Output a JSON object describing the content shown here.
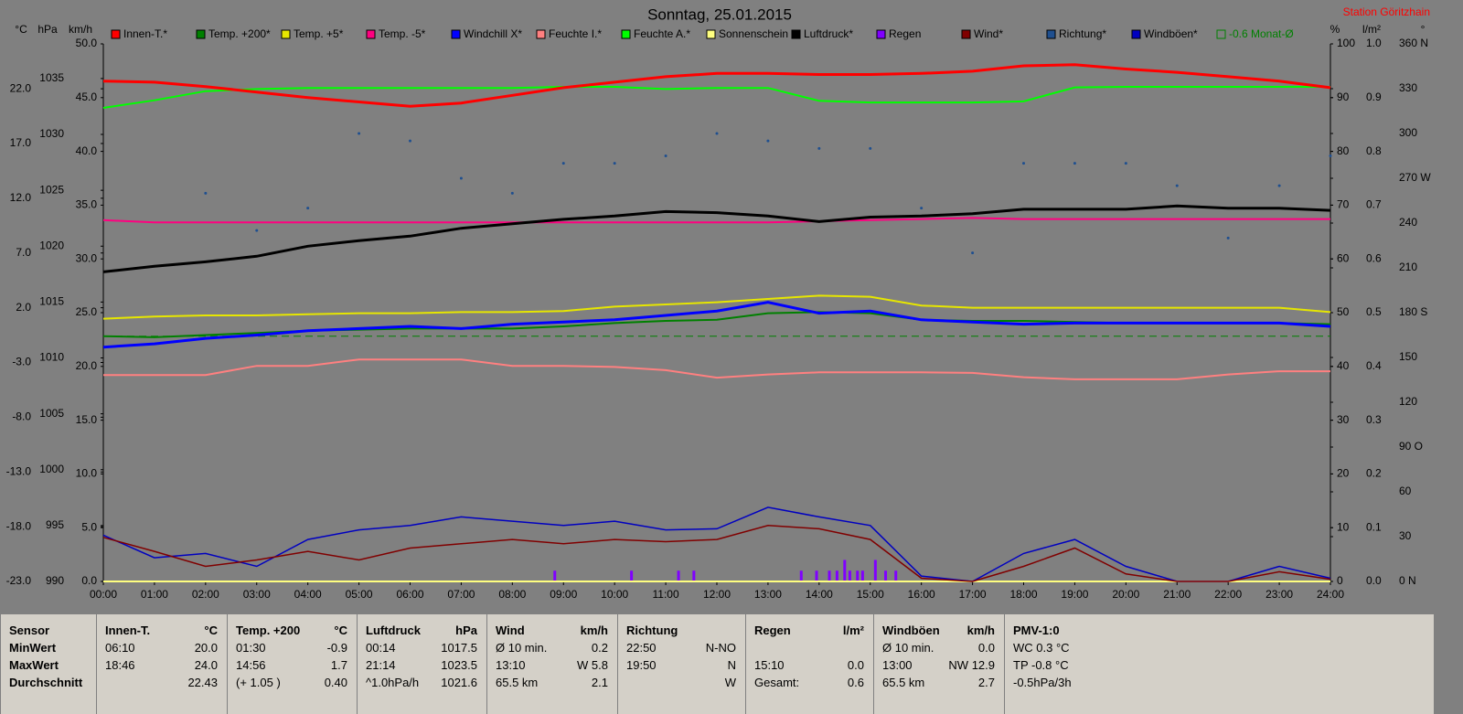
{
  "chart_data": {
    "type": "line",
    "title": "Sonntag, 25.01.2015",
    "station": "Station Göritzhain",
    "x": [
      0,
      1,
      2,
      3,
      4,
      5,
      6,
      7,
      8,
      9,
      10,
      11,
      12,
      13,
      14,
      15,
      16,
      17,
      18,
      19,
      20,
      21,
      22,
      23,
      24
    ],
    "xlim": [
      0,
      24
    ],
    "xticks": [
      {
        "value": 0,
        "label": "00:00"
      },
      {
        "value": 1,
        "label": "01:00"
      },
      {
        "value": 2,
        "label": "02:00"
      },
      {
        "value": 3,
        "label": "03:00"
      },
      {
        "value": 4,
        "label": "04:00"
      },
      {
        "value": 5,
        "label": "05:00"
      },
      {
        "value": 6,
        "label": "06:00"
      },
      {
        "value": 7,
        "label": "07:00"
      },
      {
        "value": 8,
        "label": "08:00"
      },
      {
        "value": 9,
        "label": "09:00"
      },
      {
        "value": 10,
        "label": "10:00"
      },
      {
        "value": 11,
        "label": "11:00"
      },
      {
        "value": 12,
        "label": "12:00"
      },
      {
        "value": 13,
        "label": "13:00"
      },
      {
        "value": 14,
        "label": "14:00"
      },
      {
        "value": 15,
        "label": "15:00"
      },
      {
        "value": 16,
        "label": "16:00"
      },
      {
        "value": 17,
        "label": "17:00"
      },
      {
        "value": 18,
        "label": "18:00"
      },
      {
        "value": 19,
        "label": "19:00"
      },
      {
        "value": 20,
        "label": "20:00"
      },
      {
        "value": 21,
        "label": "21:00"
      },
      {
        "value": 22,
        "label": "22:00"
      },
      {
        "value": 23,
        "label": "23:00"
      },
      {
        "value": 24,
        "label": "24:00"
      }
    ],
    "axes": [
      {
        "unit": "°C",
        "lim": [
          -23,
          26.1
        ],
        "ticks": [
          {
            "value": -23,
            "label": "-23.0"
          },
          {
            "value": -18,
            "label": "-18.0"
          },
          {
            "value": -13,
            "label": "-13.0"
          },
          {
            "value": -8,
            "label": "-8.0"
          },
          {
            "value": -3,
            "label": "-3.0"
          },
          {
            "value": 2,
            "label": "2.0"
          },
          {
            "value": 7,
            "label": "7.0"
          },
          {
            "value": 12,
            "label": "12.0"
          },
          {
            "value": 17,
            "label": "17.0"
          },
          {
            "value": 22,
            "label": "22.0"
          }
        ]
      },
      {
        "unit": "hPa",
        "lim": [
          990,
          1038.1
        ],
        "ticks": [
          990,
          995,
          1000,
          1005,
          1010,
          1015,
          1020,
          1025,
          1030,
          1035
        ]
      },
      {
        "unit": "km/h",
        "lim": [
          0,
          50
        ],
        "ticks": [
          {
            "value": 0,
            "label": "0.0"
          },
          {
            "value": 5,
            "label": "5.0"
          },
          {
            "value": 10,
            "label": "10.0"
          },
          {
            "value": 15,
            "label": "15.0"
          },
          {
            "value": 20,
            "label": "20.0"
          },
          {
            "value": 25,
            "label": "25.0"
          },
          {
            "value": 30,
            "label": "30.0"
          },
          {
            "value": 35,
            "label": "35.0"
          },
          {
            "value": 40,
            "label": "40.0"
          },
          {
            "value": 45,
            "label": "45.0"
          },
          {
            "value": 50,
            "label": "50.0"
          }
        ]
      },
      {
        "unit": "%",
        "lim": [
          0,
          100
        ],
        "ticks": [
          0,
          10,
          20,
          30,
          40,
          50,
          60,
          70,
          80,
          90,
          100
        ]
      },
      {
        "unit": "l/m²",
        "lim": [
          0,
          1
        ],
        "ticks": [
          {
            "value": 0,
            "label": "0.0"
          },
          0.1,
          0.2,
          0.3,
          0.4,
          0.5,
          0.6,
          0.7,
          0.8,
          0.9,
          {
            "value": 1,
            "label": "1.0"
          }
        ]
      },
      {
        "unit": "°",
        "lim": [
          0,
          360
        ],
        "ticks": [
          {
            "value": 0,
            "label": "0 N"
          },
          30,
          60,
          {
            "value": 90,
            "label": "90 O"
          },
          120,
          150,
          {
            "value": 180,
            "label": "180 S"
          },
          210,
          240,
          {
            "value": 270,
            "label": "270 W"
          },
          300,
          330,
          {
            "value": 360,
            "label": "360 N"
          }
        ]
      }
    ],
    "series": [
      {
        "name": "Innen-T.*",
        "color": "#ff0000",
        "axis": 0,
        "mark": "line",
        "values": [
          22.7,
          22.6,
          22.2,
          21.7,
          21.2,
          20.8,
          20.4,
          20.7,
          21.4,
          22.1,
          22.6,
          23.1,
          23.4,
          23.4,
          23.3,
          23.3,
          23.4,
          23.6,
          24.1,
          24.2,
          23.8,
          23.5,
          23.1,
          22.7,
          22.1
        ]
      },
      {
        "name": "Temp. +200*",
        "color": "#008000",
        "axis": 0,
        "mark": "line",
        "values": [
          -0.6,
          -0.7,
          -0.5,
          -0.3,
          -0.1,
          0.0,
          0.1,
          0.1,
          0.1,
          0.3,
          0.6,
          0.8,
          0.9,
          1.5,
          1.6,
          1.5,
          0.9,
          0.8,
          0.8,
          0.7,
          0.6,
          0.6,
          0.6,
          0.6,
          0.5
        ]
      },
      {
        "name": "Temp. +5*",
        "color": "#e6e600",
        "axis": 0,
        "mark": "line",
        "values": [
          1.0,
          1.2,
          1.3,
          1.3,
          1.4,
          1.5,
          1.5,
          1.6,
          1.6,
          1.7,
          2.1,
          2.3,
          2.5,
          2.8,
          3.1,
          3.0,
          2.2,
          2.0,
          2.0,
          2.0,
          2.0,
          2.0,
          2.0,
          2.0,
          1.6
        ]
      },
      {
        "name": "Temp. -5*",
        "color": "#ff0080",
        "axis": 0,
        "mark": "line",
        "values": [
          10.0,
          9.8,
          9.8,
          9.8,
          9.8,
          9.8,
          9.8,
          9.8,
          9.8,
          9.8,
          9.8,
          9.8,
          9.8,
          9.8,
          9.9,
          10.0,
          10.1,
          10.2,
          10.1,
          10.1,
          10.1,
          10.1,
          10.1,
          10.1,
          10.1
        ]
      },
      {
        "name": "Windchill X*",
        "color": "#0000ff",
        "axis": 0,
        "mark": "line",
        "values": [
          -1.6,
          -1.3,
          -0.8,
          -0.5,
          -0.1,
          0.1,
          0.3,
          0.1,
          0.5,
          0.7,
          0.9,
          1.3,
          1.7,
          2.5,
          1.5,
          1.7,
          0.9,
          0.7,
          0.5,
          0.6,
          0.6,
          0.6,
          0.6,
          0.6,
          0.3
        ]
      },
      {
        "name": "Feuchte I.*",
        "color": "#ff8080",
        "axis": 3,
        "mark": "line",
        "values": [
          38.4,
          38.4,
          38.4,
          40.1,
          40.1,
          41.3,
          41.3,
          41.3,
          40.1,
          40.1,
          39.9,
          39.3,
          37.9,
          38.5,
          38.9,
          38.9,
          38.9,
          38.8,
          38.0,
          37.6,
          37.6,
          37.6,
          38.5,
          39.1,
          39.1
        ]
      },
      {
        "name": "Feuchte A.*",
        "color": "#00ff00",
        "axis": 3,
        "mark": "line",
        "values": [
          88.1,
          89.5,
          91.2,
          91.6,
          91.8,
          91.8,
          91.8,
          91.8,
          91.8,
          92.0,
          92.0,
          91.6,
          91.8,
          91.8,
          89.4,
          89.1,
          89.1,
          89.1,
          89.3,
          91.9,
          92.0,
          92.0,
          92.0,
          92.0,
          92.0
        ]
      },
      {
        "name": "Sonnenschein",
        "color": "#ffff80",
        "axis": 3,
        "mark": "line",
        "values": [
          0,
          0,
          0,
          0,
          0,
          0,
          0,
          0,
          0,
          0,
          0,
          0,
          0,
          0,
          0,
          0,
          0,
          0,
          0,
          0,
          0,
          0,
          0,
          0,
          0
        ]
      },
      {
        "name": "Luftdruck*",
        "color": "#000000",
        "axis": 1,
        "mark": "line",
        "values": [
          1017.7,
          1018.2,
          1018.6,
          1019.1,
          1020.0,
          1020.5,
          1020.9,
          1021.6,
          1022.0,
          1022.4,
          1022.7,
          1023.1,
          1023.0,
          1022.7,
          1022.2,
          1022.6,
          1022.7,
          1022.9,
          1023.3,
          1023.3,
          1023.3,
          1023.6,
          1023.4,
          1023.4,
          1023.2
        ]
      },
      {
        "name": "Regen",
        "color": "#8000ff",
        "axis": 4,
        "mark": "bars",
        "x": [
          8.83,
          10.33,
          11.25,
          11.55,
          13.65,
          13.95,
          14.2,
          14.35,
          14.5,
          14.6,
          14.75,
          14.85,
          15.1,
          15.3,
          15.5
        ],
        "values": [
          0.02,
          0.02,
          0.02,
          0.02,
          0.02,
          0.02,
          0.02,
          0.02,
          0.04,
          0.02,
          0.02,
          0.02,
          0.04,
          0.02,
          0.02
        ]
      },
      {
        "name": "Wind*",
        "color": "#800000",
        "axis": 2,
        "mark": "line",
        "values": [
          4.1,
          2.8,
          1.4,
          2.0,
          2.8,
          2.0,
          3.1,
          3.5,
          3.9,
          3.5,
          3.9,
          3.7,
          3.9,
          5.2,
          4.9,
          3.9,
          0.3,
          0,
          1.4,
          3.1,
          0.7,
          0,
          0,
          0.9,
          0.2
        ]
      },
      {
        "name": "Richtung*",
        "color": "#1f4f8f",
        "axis": 5,
        "mark": "dots",
        "values": [
          null,
          null,
          260,
          235,
          250,
          300,
          295,
          270,
          260,
          280,
          280,
          285,
          300,
          295,
          290,
          290,
          250,
          220,
          280,
          280,
          280,
          265,
          230,
          265,
          285
        ]
      },
      {
        "name": "Windböen*",
        "color": "#0000c0",
        "axis": 2,
        "mark": "line",
        "values": [
          4.3,
          2.2,
          2.6,
          1.4,
          3.9,
          4.8,
          5.2,
          6.0,
          5.6,
          5.2,
          5.6,
          4.8,
          4.9,
          6.9,
          6.0,
          5.2,
          0.5,
          0,
          2.6,
          3.9,
          1.4,
          0,
          0,
          1.4,
          0.3
        ]
      }
    ],
    "reference_line": {
      "label": "-0.6 Monat-Ø",
      "value": -0.6,
      "axis": 0,
      "color": "#008000"
    }
  },
  "table": {
    "columns": [
      {
        "name": "Sensor",
        "cells": [
          [
            "MinWert"
          ],
          [
            "MaxWert"
          ],
          [
            "Durchschnitt"
          ]
        ]
      },
      {
        "name": "Innen-T.",
        "unit": "°C",
        "cells": [
          [
            "06:10",
            "20.0"
          ],
          [
            "18:46",
            "24.0"
          ],
          [
            null,
            "22.43"
          ]
        ]
      },
      {
        "name": "Temp. +200",
        "unit": "°C",
        "cells": [
          [
            "01:30",
            "-0.9"
          ],
          [
            "14:56",
            "1.7"
          ],
          [
            "(+ 1.05 )",
            "0.40"
          ]
        ]
      },
      {
        "name": "Luftdruck",
        "unit": "hPa",
        "cells": [
          [
            "00:14",
            "1017.5"
          ],
          [
            "21:14",
            "1023.5"
          ],
          [
            "^1.0hPa/h",
            "1021.6"
          ]
        ]
      },
      {
        "name": "Wind",
        "unit": "km/h",
        "cells": [
          [
            "Ø 10 min.",
            "0.2"
          ],
          [
            "13:10",
            "W 5.8"
          ],
          [
            "65.5 km",
            "2.1"
          ]
        ]
      },
      {
        "name": "Richtung",
        "cells": [
          [
            "22:50",
            "N-NO"
          ],
          [
            "19:50",
            "N"
          ],
          [
            null,
            "W"
          ]
        ]
      },
      {
        "name": "Regen",
        "unit": "l/m²",
        "cells": [
          [
            null,
            null
          ],
          [
            "15:10",
            "0.0"
          ],
          [
            "Gesamt:",
            "0.6"
          ]
        ]
      },
      {
        "name": "Windböen",
        "unit": "km/h",
        "cells": [
          [
            "Ø 10 min.",
            "0.0"
          ],
          [
            "13:00",
            "NW 12.9"
          ],
          [
            "65.5 km",
            "2.7"
          ]
        ]
      },
      {
        "name": "PMV-1:0",
        "cells": [
          [
            "WC 0.3 °C"
          ],
          [
            "TP -0.8 °C"
          ],
          [
            "-0.5hPa/3h"
          ]
        ]
      }
    ]
  }
}
